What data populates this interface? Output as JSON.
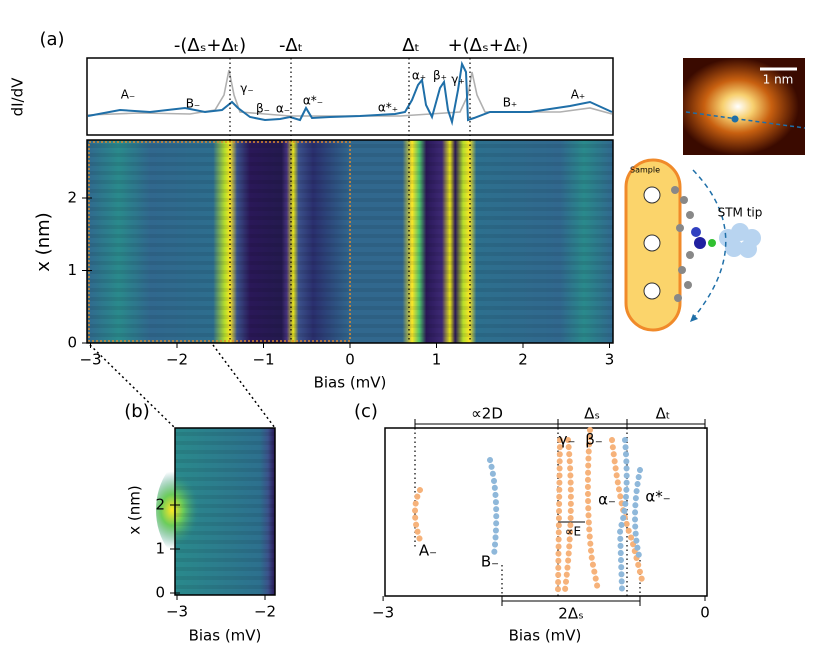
{
  "panel_a": {
    "label": "(a)",
    "annotations": [
      "-(Δₛ+Δₜ)",
      "-Δₜ",
      "Δₜ",
      "+(Δₛ+Δₜ)"
    ],
    "top_ylabel": "dI/dV",
    "peak_labels": [
      "A₋",
      "B₋",
      "γ₋",
      "β₋",
      "α₋",
      "α*₋",
      "α*₊",
      "α₊",
      "β₊",
      "γ₊",
      "B₊",
      "A₊"
    ],
    "ylabel": "x (nm)",
    "xlabel": "Bias (mV)",
    "xticks": [
      {
        "value": -3,
        "label": "−3"
      },
      {
        "value": -2,
        "label": "−2"
      },
      {
        "value": -1,
        "label": "−1"
      },
      0,
      1,
      2,
      3
    ],
    "yticks": [
      0,
      1,
      2
    ]
  },
  "inset": {
    "scale": "1 nm",
    "sample": "Sample",
    "tip": "STM tip"
  },
  "panel_b": {
    "label": "(b)",
    "ylabel": "x (nm)",
    "xlabel": "Bias (mV)",
    "xticks": [
      {
        "value": -3,
        "label": "−3"
      },
      {
        "value": -2,
        "label": "−2"
      }
    ],
    "yticks": [
      0,
      1,
      2
    ]
  },
  "panel_c": {
    "label": "(c)",
    "xlabel": "Bias (mV)",
    "brackets": [
      "∝2D",
      "Δₛ",
      "Δₜ",
      "2Δₛ"
    ],
    "track_labels": [
      "γ₋",
      "β₋",
      "α₋",
      "α*₋",
      "A₋",
      "B₋",
      "∝E"
    ],
    "xticks": [
      {
        "value": -3,
        "label": "−3"
      },
      0
    ]
  }
}
